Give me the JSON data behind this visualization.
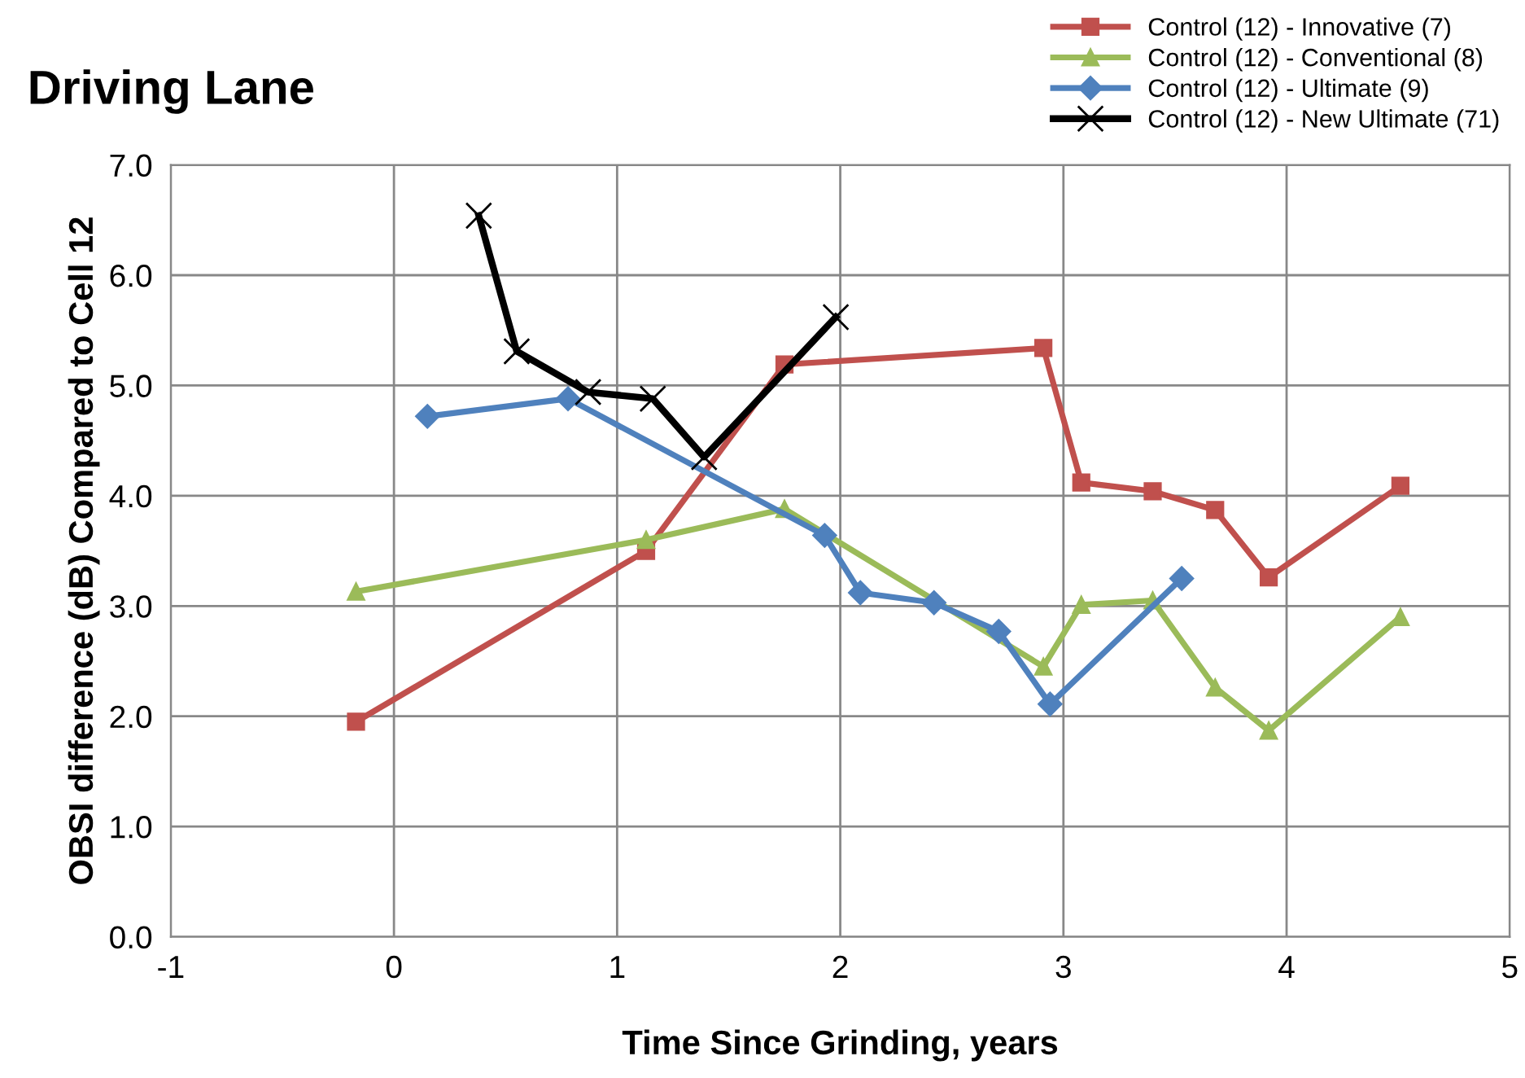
{
  "chart_data": {
    "type": "line",
    "title": "Driving Lane",
    "xlabel": "Time Since Grinding, years",
    "ylabel": "OBSI difference (dB) Compared to Cell 12",
    "series": [
      {
        "name": "Control (12) - Innovative (7)",
        "color": "#c0504d",
        "marker": "square",
        "x": [
          -0.17,
          1.13,
          1.75,
          2.91,
          3.08,
          3.4,
          3.68,
          3.92,
          4.51
        ],
        "values": [
          1.95,
          3.5,
          5.19,
          5.34,
          4.12,
          4.04,
          3.87,
          3.26,
          4.09
        ]
      },
      {
        "name": "Control (12) - Conventional (8)",
        "color": "#9bbb59",
        "marker": "triangle",
        "x": [
          -0.17,
          1.13,
          1.75,
          2.91,
          3.08,
          3.4,
          3.68,
          3.92,
          4.51
        ],
        "values": [
          3.13,
          3.6,
          3.88,
          2.45,
          3.01,
          3.05,
          2.26,
          1.87,
          2.9
        ]
      },
      {
        "name": "Control (12) - Ultimate (9)",
        "color": "#4f81bd",
        "marker": "diamond",
        "x": [
          0.15,
          0.78,
          1.93,
          2.09,
          2.42,
          2.71,
          2.94,
          3.53
        ],
        "values": [
          4.72,
          4.88,
          3.64,
          3.12,
          3.03,
          2.77,
          2.11,
          3.25
        ]
      },
      {
        "name": "Control (12) - New Ultimate (71)",
        "color": "#000000",
        "marker": "cross",
        "x": [
          0.38,
          0.55,
          0.87,
          1.16,
          1.39,
          1.98
        ],
        "values": [
          6.54,
          5.31,
          4.94,
          4.88,
          4.35,
          5.62
        ]
      }
    ],
    "xlim": [
      -1,
      5
    ],
    "xticks": [
      -1,
      0,
      1,
      2,
      3,
      4,
      5
    ],
    "ylim": [
      0,
      7
    ],
    "yticks": [
      {
        "value": 0,
        "label": "0.0"
      },
      {
        "value": 1,
        "label": "1.0"
      },
      {
        "value": 2,
        "label": "2.0"
      },
      {
        "value": 3,
        "label": "3.0"
      },
      {
        "value": 4,
        "label": "4.0"
      },
      {
        "value": 5,
        "label": "5.0"
      },
      {
        "value": 6,
        "label": "6.0"
      },
      {
        "value": 7,
        "label": "7.0"
      }
    ],
    "grid": true,
    "legend": "top right",
    "line_style": "solid"
  }
}
